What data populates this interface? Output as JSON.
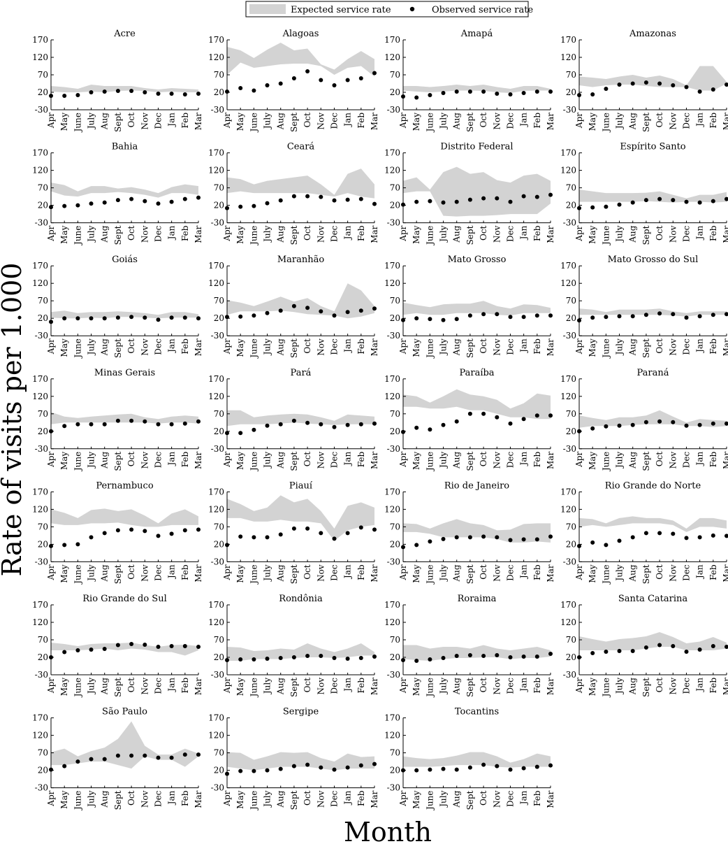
{
  "chart_data": {
    "type": "area",
    "ylabel": "Rate of visits per 1.000",
    "xlabel": "Month",
    "legend": {
      "placement": "top-center",
      "entries": [
        "Expected service rate",
        "Observed service rate"
      ]
    },
    "categories": [
      "Apr",
      "May",
      "June",
      "July",
      "Aug",
      "Sept",
      "Oct",
      "Nov",
      "Dec",
      "Jan",
      "Feb",
      "Mar"
    ],
    "ylim": [
      -30,
      170
    ],
    "yticks": [
      170,
      120,
      70,
      20,
      -30
    ],
    "grid": false,
    "colors": {
      "band": "#d3d3d3",
      "points": "#000000"
    },
    "panels": [
      {
        "title": "Acre",
        "lower": [
          22,
          20,
          20,
          22,
          20,
          24,
          25,
          24,
          20,
          22,
          20,
          20
        ],
        "upper": [
          38,
          35,
          30,
          42,
          38,
          38,
          38,
          32,
          28,
          32,
          30,
          28
        ],
        "observed": [
          10,
          10,
          12,
          20,
          22,
          24,
          24,
          20,
          16,
          16,
          14,
          16
        ]
      },
      {
        "title": "Alagoas",
        "lower": [
          70,
          105,
          90,
          95,
          100,
          102,
          102,
          95,
          70,
          90,
          95,
          65
        ],
        "upper": [
          150,
          140,
          118,
          142,
          162,
          140,
          145,
          100,
          85,
          115,
          138,
          115
        ],
        "observed": [
          22,
          32,
          25,
          40,
          45,
          60,
          80,
          55,
          40,
          55,
          60,
          75
        ]
      },
      {
        "title": "Amapá",
        "lower": [
          25,
          22,
          20,
          22,
          25,
          25,
          24,
          20,
          18,
          24,
          25,
          25
        ],
        "upper": [
          38,
          38,
          35,
          38,
          42,
          38,
          42,
          35,
          30,
          38,
          38,
          30
        ],
        "observed": [
          8,
          5,
          12,
          18,
          22,
          22,
          22,
          16,
          14,
          18,
          22,
          22
        ]
      },
      {
        "title": "Amazonas",
        "lower": [
          40,
          35,
          40,
          42,
          42,
          38,
          35,
          35,
          35,
          25,
          25,
          45
        ],
        "upper": [
          65,
          62,
          58,
          65,
          70,
          62,
          68,
          58,
          40,
          95,
          95,
          50
        ],
        "observed": [
          12,
          14,
          30,
          42,
          45,
          48,
          45,
          40,
          35,
          22,
          28,
          42
        ]
      },
      {
        "title": "Bahia",
        "lower": [
          60,
          48,
          45,
          55,
          55,
          58,
          55,
          50,
          42,
          55,
          55,
          50
        ],
        "upper": [
          85,
          78,
          60,
          75,
          75,
          68,
          72,
          65,
          55,
          72,
          80,
          75
        ],
        "observed": [
          15,
          18,
          20,
          25,
          28,
          35,
          38,
          32,
          25,
          30,
          38,
          42
        ]
      },
      {
        "title": "Ceará",
        "lower": [
          55,
          60,
          55,
          55,
          55,
          55,
          55,
          50,
          45,
          55,
          45,
          40
        ],
        "upper": [
          100,
          95,
          80,
          90,
          95,
          100,
          105,
          80,
          50,
          110,
          125,
          80
        ],
        "observed": [
          12,
          16,
          18,
          26,
          34,
          46,
          46,
          44,
          34,
          36,
          38,
          24
        ]
      },
      {
        "title": "Distrito Federal",
        "lower": [
          55,
          60,
          60,
          -10,
          -12,
          -10,
          -10,
          -8,
          -5,
          -5,
          -5,
          25
        ],
        "upper": [
          90,
          100,
          65,
          115,
          130,
          110,
          115,
          92,
          85,
          105,
          110,
          90
        ],
        "observed": [
          22,
          30,
          32,
          28,
          30,
          36,
          40,
          40,
          30,
          46,
          44,
          50
        ]
      },
      {
        "title": "Espírito Santo",
        "lower": [
          30,
          30,
          30,
          30,
          30,
          32,
          30,
          28,
          30,
          30,
          28,
          30
        ],
        "upper": [
          65,
          60,
          55,
          55,
          55,
          56,
          60,
          50,
          40,
          50,
          50,
          58
        ],
        "observed": [
          12,
          14,
          16,
          22,
          28,
          35,
          38,
          35,
          30,
          28,
          32,
          38
        ]
      },
      {
        "title": "Goiás",
        "lower": [
          22,
          20,
          20,
          22,
          20,
          24,
          24,
          22,
          20,
          22,
          22,
          22
        ],
        "upper": [
          38,
          42,
          35,
          38,
          38,
          40,
          38,
          35,
          30,
          38,
          38,
          32
        ],
        "observed": [
          10,
          20,
          20,
          20,
          20,
          22,
          24,
          22,
          16,
          22,
          22,
          20
        ]
      },
      {
        "title": "Maranhão",
        "lower": [
          30,
          40,
          40,
          40,
          42,
          38,
          32,
          30,
          28,
          20,
          25,
          35
        ],
        "upper": [
          72,
          65,
          55,
          68,
          82,
          68,
          78,
          55,
          40,
          120,
          100,
          55
        ],
        "observed": [
          24,
          25,
          28,
          35,
          42,
          55,
          50,
          40,
          28,
          38,
          42,
          48
        ]
      },
      {
        "title": "Mato Grosso",
        "lower": [
          30,
          35,
          30,
          30,
          35,
          35,
          35,
          30,
          28,
          35,
          35,
          35
        ],
        "upper": [
          65,
          58,
          52,
          60,
          62,
          62,
          70,
          55,
          48,
          60,
          58,
          50
        ],
        "observed": [
          15,
          20,
          18,
          15,
          18,
          28,
          32,
          32,
          24,
          24,
          28,
          28
        ]
      },
      {
        "title": "Mato Grosso do Sul",
        "lower": [
          30,
          30,
          30,
          30,
          30,
          30,
          30,
          28,
          25,
          30,
          30,
          30
        ],
        "upper": [
          48,
          45,
          38,
          45,
          45,
          45,
          48,
          40,
          35,
          40,
          40,
          40
        ],
        "observed": [
          14,
          22,
          24,
          26,
          26,
          30,
          34,
          32,
          22,
          26,
          30,
          32
        ]
      },
      {
        "title": "Minas Gerais",
        "lower": [
          40,
          45,
          45,
          45,
          45,
          45,
          45,
          45,
          42,
          45,
          45,
          42
        ],
        "upper": [
          75,
          62,
          58,
          62,
          65,
          68,
          70,
          60,
          55,
          62,
          65,
          62
        ],
        "observed": [
          20,
          35,
          40,
          40,
          40,
          50,
          50,
          48,
          40,
          40,
          42,
          48
        ]
      },
      {
        "title": "Pará",
        "lower": [
          35,
          40,
          40,
          40,
          42,
          45,
          42,
          40,
          38,
          40,
          40,
          40
        ],
        "upper": [
          80,
          80,
          60,
          65,
          68,
          70,
          68,
          60,
          50,
          68,
          65,
          62
        ],
        "observed": [
          15,
          15,
          24,
          36,
          40,
          50,
          44,
          40,
          32,
          38,
          40,
          42
        ]
      },
      {
        "title": "Paraíba",
        "lower": [
          90,
          90,
          85,
          85,
          90,
          80,
          80,
          70,
          60,
          60,
          55,
          55
        ],
        "upper": [
          125,
          120,
          102,
          120,
          140,
          125,
          120,
          110,
          85,
          100,
          128,
          122
        ],
        "observed": [
          18,
          30,
          25,
          38,
          48,
          70,
          70,
          60,
          42,
          55,
          65,
          65
        ]
      },
      {
        "title": "Paraná",
        "lower": [
          30,
          35,
          35,
          35,
          38,
          40,
          40,
          40,
          35,
          35,
          32,
          35
        ],
        "upper": [
          65,
          58,
          52,
          60,
          60,
          65,
          80,
          62,
          45,
          55,
          52,
          50
        ],
        "observed": [
          20,
          28,
          34,
          36,
          38,
          46,
          48,
          46,
          36,
          38,
          42,
          42
        ]
      },
      {
        "title": "Pernambuco",
        "lower": [
          80,
          75,
          75,
          80,
          80,
          82,
          75,
          70,
          70,
          75,
          75,
          75
        ],
        "upper": [
          120,
          110,
          95,
          118,
          122,
          115,
          120,
          102,
          80,
          108,
          120,
          100
        ],
        "observed": [
          15,
          18,
          20,
          40,
          52,
          60,
          62,
          58,
          44,
          50,
          60,
          62
        ]
      },
      {
        "title": "Piauí",
        "lower": [
          95,
          95,
          85,
          85,
          90,
          85,
          85,
          80,
          30,
          60,
          70,
          75
        ],
        "upper": [
          150,
          135,
          115,
          125,
          160,
          140,
          150,
          115,
          65,
          130,
          140,
          125
        ],
        "observed": [
          18,
          42,
          40,
          40,
          48,
          65,
          65,
          52,
          36,
          52,
          68,
          62
        ]
      },
      {
        "title": "Rio de Janeiro",
        "lower": [
          55,
          55,
          50,
          40,
          40,
          40,
          40,
          35,
          25,
          25,
          28,
          25
        ],
        "upper": [
          80,
          78,
          65,
          80,
          92,
          80,
          75,
          60,
          62,
          78,
          80,
          80
        ],
        "observed": [
          12,
          18,
          28,
          35,
          40,
          40,
          42,
          40,
          32,
          34,
          34,
          42
        ]
      },
      {
        "title": "Rio Grande do Norte",
        "lower": [
          70,
          75,
          70,
          75,
          80,
          80,
          80,
          75,
          55,
          70,
          70,
          65
        ],
        "upper": [
          95,
          92,
          80,
          95,
          100,
          95,
          95,
          88,
          65,
          95,
          95,
          88
        ],
        "observed": [
          15,
          25,
          18,
          30,
          40,
          52,
          52,
          50,
          38,
          40,
          45,
          44
        ]
      },
      {
        "title": "Rio Grande do Sul",
        "lower": [
          40,
          40,
          40,
          42,
          45,
          40,
          45,
          42,
          35,
          35,
          25,
          40
        ],
        "upper": [
          62,
          58,
          52,
          58,
          60,
          60,
          62,
          55,
          50,
          55,
          56,
          52
        ],
        "observed": [
          20,
          35,
          40,
          42,
          44,
          55,
          58,
          56,
          50,
          52,
          52,
          50
        ]
      },
      {
        "title": "Rondônia",
        "lower": [
          10,
          10,
          15,
          15,
          15,
          18,
          20,
          20,
          18,
          20,
          25,
          25
        ],
        "upper": [
          50,
          48,
          38,
          40,
          45,
          42,
          60,
          45,
          35,
          45,
          60,
          35
        ],
        "observed": [
          12,
          14,
          14,
          16,
          18,
          20,
          24,
          24,
          18,
          16,
          18,
          22
        ]
      },
      {
        "title": "Roraima",
        "lower": [
          15,
          12,
          10,
          15,
          18,
          18,
          20,
          20,
          15,
          18,
          18,
          22
        ],
        "upper": [
          55,
          55,
          45,
          50,
          50,
          45,
          55,
          45,
          40,
          45,
          50,
          40
        ],
        "observed": [
          12,
          10,
          14,
          18,
          24,
          26,
          24,
          26,
          20,
          22,
          22,
          30
        ]
      },
      {
        "title": "Santa Catarina",
        "lower": [
          40,
          40,
          40,
          40,
          40,
          45,
          50,
          50,
          40,
          40,
          40,
          45
        ],
        "upper": [
          80,
          72,
          65,
          72,
          75,
          80,
          92,
          78,
          60,
          65,
          78,
          62
        ],
        "observed": [
          20,
          32,
          36,
          38,
          38,
          48,
          55,
          52,
          36,
          42,
          52,
          50
        ]
      },
      {
        "title": "São Paulo",
        "lower": [
          35,
          35,
          40,
          45,
          45,
          35,
          25,
          60,
          50,
          50,
          30,
          60
        ],
        "upper": [
          72,
          82,
          60,
          75,
          85,
          110,
          160,
          90,
          65,
          65,
          82,
          68
        ],
        "observed": [
          22,
          32,
          45,
          52,
          52,
          62,
          62,
          62,
          56,
          56,
          65,
          65
        ]
      },
      {
        "title": "Sergipe",
        "lower": [
          30,
          25,
          20,
          25,
          30,
          30,
          30,
          25,
          20,
          25,
          25,
          25
        ],
        "upper": [
          72,
          70,
          50,
          60,
          72,
          70,
          72,
          55,
          45,
          68,
          58,
          60
        ],
        "observed": [
          10,
          18,
          18,
          20,
          24,
          32,
          36,
          28,
          22,
          28,
          34,
          38
        ]
      },
      {
        "title": "Tocantins",
        "lower": [
          30,
          30,
          30,
          32,
          35,
          35,
          35,
          30,
          28,
          30,
          30,
          30
        ],
        "upper": [
          60,
          55,
          52,
          55,
          62,
          72,
          72,
          60,
          42,
          52,
          68,
          60
        ],
        "observed": [
          20,
          20,
          22,
          24,
          22,
          28,
          36,
          32,
          22,
          26,
          30,
          34
        ]
      }
    ]
  }
}
